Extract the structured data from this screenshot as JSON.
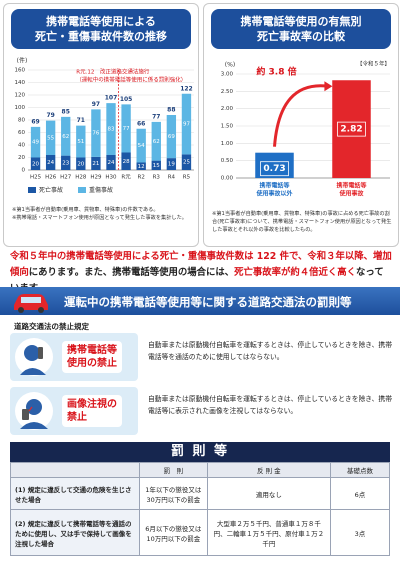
{
  "chart_data": [
    {
      "type": "bar",
      "title": [
        "携帯電話等使用による",
        "死亡・重傷事故件数の推移"
      ],
      "y_label": "(件)",
      "annotation": [
        "R元.12　改正道路交通法施行",
        "（運転中の携帯電話等使用に係る罰則強化）"
      ],
      "categories": [
        "H25",
        "H26",
        "H27",
        "H28",
        "H29",
        "H30",
        "R元",
        "R2",
        "R3",
        "R4",
        "R5"
      ],
      "series": [
        {
          "name": "死亡事故",
          "color": "#1c57a5",
          "values": [
            20,
            24,
            23,
            20,
            21,
            24,
            28,
            12,
            15,
            19,
            25
          ]
        },
        {
          "name": "重傷事故",
          "color": "#5cb6e4",
          "values": [
            49,
            55,
            62,
            51,
            76,
            83,
            77,
            54,
            62,
            69,
            97
          ]
        }
      ],
      "totals": [
        69,
        79,
        85,
        71,
        97,
        107,
        105,
        66,
        77,
        88,
        122
      ],
      "ylim": [
        0,
        160
      ],
      "yticks": [
        0,
        20,
        40,
        60,
        80,
        100,
        120,
        140,
        160
      ],
      "grid": true,
      "stacked": true,
      "notes": [
        "※第1当事者が自動車(乗用車、貨物車、特殊車)の件数である。",
        "※携帯電話・スマートフォン使用が原因となって発生した事故を集計した。"
      ]
    },
    {
      "type": "bar",
      "title": [
        "携帯電話等使用の有無別",
        "死亡事故率の比較"
      ],
      "y_label": "(%)",
      "subtitle": "【令和５年】",
      "annotation": "約 3.8 倍",
      "categories": [
        [
          "携帯電話等",
          "使用事故以外"
        ],
        [
          "携帯電話等",
          "使用事故"
        ]
      ],
      "values": [
        0.73,
        2.82
      ],
      "colors": [
        "#1f6fc5",
        "#e3262b"
      ],
      "ylim": [
        0,
        3
      ],
      "yticks": [
        {
          "value": 0,
          "label": "0.00"
        },
        {
          "value": 0.5,
          "label": "0.50"
        },
        {
          "value": 1,
          "label": "1.00"
        },
        {
          "value": 1.5,
          "label": "1.50"
        },
        {
          "value": 2,
          "label": "2.00"
        },
        {
          "value": 2.5,
          "label": "2.50"
        },
        {
          "value": 3,
          "label": "3.00"
        }
      ],
      "grid": true,
      "notes": [
        "※第1当事者が自動車(乗用車、貨物車、特殊車)の事故に占める死亡事故の割合(死亡事故率)について、携帯電話・スマートフォン使用が原因となって発生した事故とそれ以外の事故を比較したもの。"
      ]
    }
  ],
  "summary": [
    "令和５年中の携帯電話等使用による死亡・重傷事故件数は 122 件で、令和３年以降、増加傾向",
    "にあります。また、携帯電話等使用の場合には、",
    "死亡事故率が約４倍近く高く",
    "なっています。"
  ],
  "section": {
    "title": "運転中の携帯電話等使用等に関する道路交通法の罰則等",
    "subtitle": "道路交通法の禁止規定",
    "items": [
      {
        "label": [
          "携帯電話等",
          "使用の禁止"
        ],
        "text": "自動車または原動機付自転車を運転するときは、停止しているときを除き、携帯電話等を通話のために使用してはならない。"
      },
      {
        "label": [
          "画像注視の",
          "禁止"
        ],
        "text": "自動車または原動機付自転車を運転するときは、停止しているときを除き、携帯電話等に表示された画像を注視してはならない。"
      }
    ]
  },
  "table": {
    "title": "罰 則 等",
    "header": [
      "罰　則",
      "反 則 金",
      "基礎点数"
    ],
    "rows": [
      [
        "(1) 規定に違反して交通の危険を生じさせた場合",
        "1年以下の懲役又は30万円以下の罰金",
        "適用なし",
        "6点"
      ],
      [
        "(2) 規定に違反して携帯電話等を通話のために使用し、又は手で保持して画像を注視した場合",
        "6月以下の懲役又は10万円以下の罰金",
        "大型車２万５千円、普通車１万８千円、二輪車１万５千円、原付車１万２千円",
        "3点"
      ]
    ]
  }
}
